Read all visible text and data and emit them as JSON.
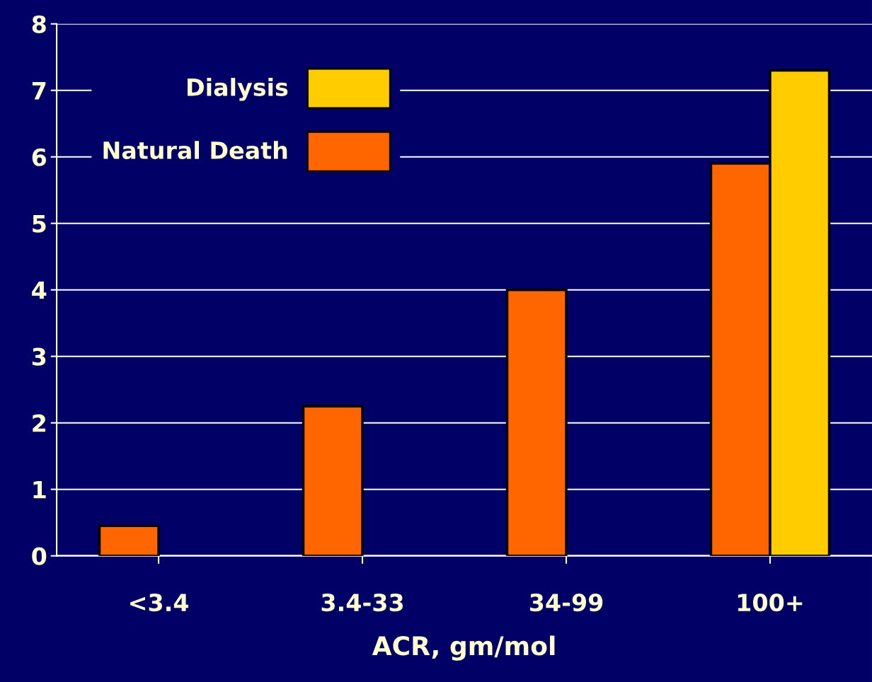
{
  "chart_data": {
    "type": "bar",
    "xlabel": "ACR, gm/mol",
    "categories": [
      "<3.4",
      "3.4-33",
      "34-99",
      "100+"
    ],
    "series": [
      {
        "name": "Natural Death",
        "color": "#ff6600",
        "values": [
          0.45,
          2.25,
          4.0,
          5.9
        ]
      },
      {
        "name": "Dialysis",
        "color": "#ffcc00",
        "values": [
          null,
          null,
          null,
          7.3
        ]
      }
    ],
    "ylim": [
      0,
      8
    ],
    "yticks": [
      0,
      1,
      2,
      3,
      4,
      5,
      6,
      7,
      8
    ],
    "grid": "y",
    "legend": "top left"
  }
}
